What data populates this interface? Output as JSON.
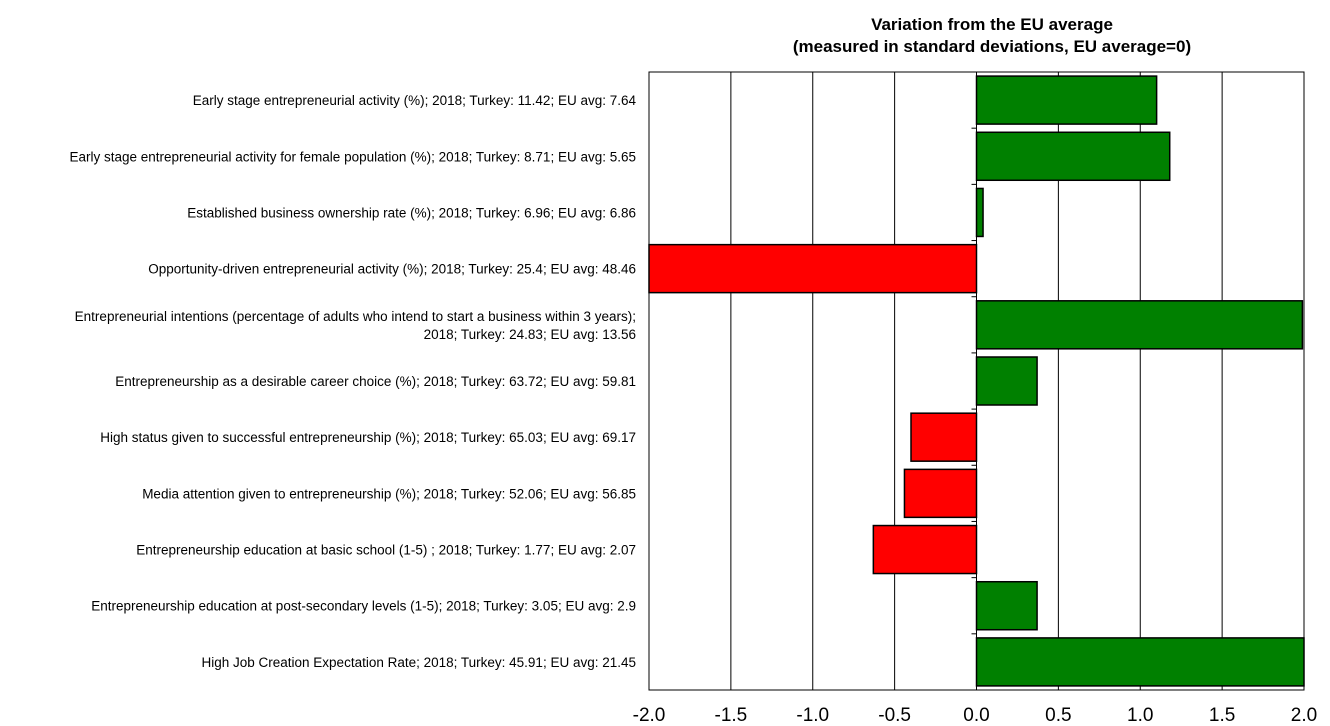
{
  "chart_data": {
    "type": "bar",
    "orientation": "horizontal",
    "title": "Variation from the EU average",
    "subtitle": "(measured in standard deviations, EU average=0)",
    "xlabel": "",
    "ylabel": "",
    "xlim": [
      -2.0,
      2.0
    ],
    "xticks": [
      "-2.0",
      "-1.5",
      "-1.0",
      "-0.5",
      "0.0",
      "0.5",
      "1.0",
      "1.5",
      "2.0"
    ],
    "grid": "vertical",
    "legend": "none",
    "colors": {
      "positive": "#008000",
      "negative": "#ff0000"
    },
    "categories": [
      [
        "Early stage entrepreneurial activity (%); 2018; Turkey: 11.42; EU avg: 7.64"
      ],
      [
        "Early stage entrepreneurial activity for female population (%); 2018; Turkey: 8.71; EU avg: 5.65"
      ],
      [
        "Established business ownership rate (%); 2018; Turkey: 6.96; EU avg: 6.86"
      ],
      [
        "Opportunity-driven entrepreneurial activity (%); 2018; Turkey: 25.4; EU avg: 48.46"
      ],
      [
        "Entrepreneurial intentions (percentage of adults who intend to start a business within 3 years);",
        "2018; Turkey: 24.83; EU avg: 13.56"
      ],
      [
        "Entrepreneurship as a desirable career choice (%); 2018; Turkey: 63.72; EU avg: 59.81"
      ],
      [
        "High status given to successful entrepreneurship (%); 2018; Turkey: 65.03; EU avg: 69.17"
      ],
      [
        "Media attention given to entrepreneurship (%); 2018; Turkey: 52.06; EU avg: 56.85"
      ],
      [
        "Entrepreneurship education at basic school (1-5) ; 2018; Turkey: 1.77; EU avg: 2.07"
      ],
      [
        "Entrepreneurship education at post-secondary levels (1-5); 2018; Turkey: 3.05; EU avg: 2.9"
      ],
      [
        "High Job Creation Expectation Rate; 2018; Turkey: 45.91; EU avg: 21.45"
      ]
    ],
    "values": [
      1.1,
      1.18,
      0.04,
      -2.0,
      1.99,
      0.37,
      -0.4,
      -0.44,
      -0.63,
      0.37,
      2.0
    ]
  }
}
